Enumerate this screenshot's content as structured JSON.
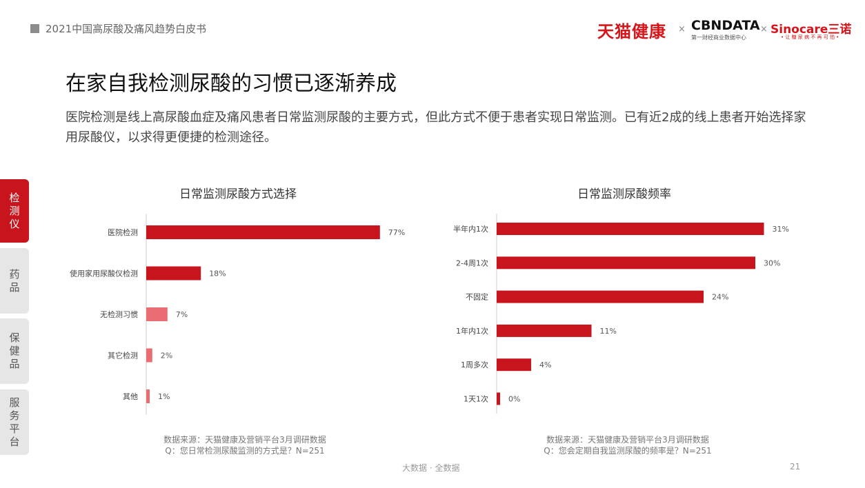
{
  "header": {
    "report_title": "2021中国高尿酸及痛风趋势白皮书",
    "logos": {
      "tmall": "天猫健康",
      "cbndata": "CBNDATA",
      "cbndata_sub": "第一财经商业数据中心",
      "sinocare": "Sinocare三诺",
      "sinocare_sub": "• 让 糖 尿 病 不 再 可 怕 •",
      "separator": "×"
    }
  },
  "main": {
    "title": "在家自我检测尿酸的习惯已逐渐养成",
    "subtitle": "医院检测是线上高尿酸血症及痛风患者日常监测尿酸的主要方式，但此方式不便于患者实现日常监测。已有近2成的线上患者开始选择家用尿酸仪，以求得更便捷的检测途径。"
  },
  "sidebar": {
    "items": [
      {
        "label": "检测仪",
        "active": true
      },
      {
        "label": "药品",
        "active": false
      },
      {
        "label": "保健品",
        "active": false
      },
      {
        "label": "服务平台",
        "active": false
      }
    ]
  },
  "colors": {
    "primary_bar": "#c8151d",
    "secondary_bar": "#e96d72",
    "accent": "#c8151d"
  },
  "chart_data": [
    {
      "type": "bar",
      "orientation": "horizontal",
      "title": "日常监测尿酸方式选择",
      "categories": [
        "医院检测",
        "使用家用尿酸仪检测",
        "无检测习惯",
        "其它检测",
        "其他"
      ],
      "values": [
        77,
        18,
        7,
        2,
        1
      ],
      "data_labels": [
        "77%",
        "18%",
        "7%",
        "2%",
        "1%"
      ],
      "unit": "%",
      "xlim": [
        0,
        100
      ],
      "grid": false,
      "note": [
        "数据来源：天猫健康及营销平台3月调研数据",
        "Q：您日常检测尿酸监测的方式是？N=251"
      ]
    },
    {
      "type": "bar",
      "orientation": "horizontal",
      "title": "日常监测尿酸频率",
      "categories": [
        "半年内1次",
        "2-4周1次",
        "不固定",
        "1年内1次",
        "1周多次",
        "1天1次"
      ],
      "values": [
        31,
        30,
        24,
        11,
        4,
        0
      ],
      "data_labels": [
        "31%",
        "30%",
        "24%",
        "11%",
        "4%",
        "0%"
      ],
      "unit": "%",
      "xlim": [
        0,
        100
      ],
      "grid": false,
      "note": [
        "数据来源：天猫健康及营销平台3月调研数据",
        "Q：您会定期自我监测尿酸的频率是？N=251"
      ]
    }
  ],
  "footer": {
    "source": "大数据 · 全数据",
    "page": "21"
  }
}
